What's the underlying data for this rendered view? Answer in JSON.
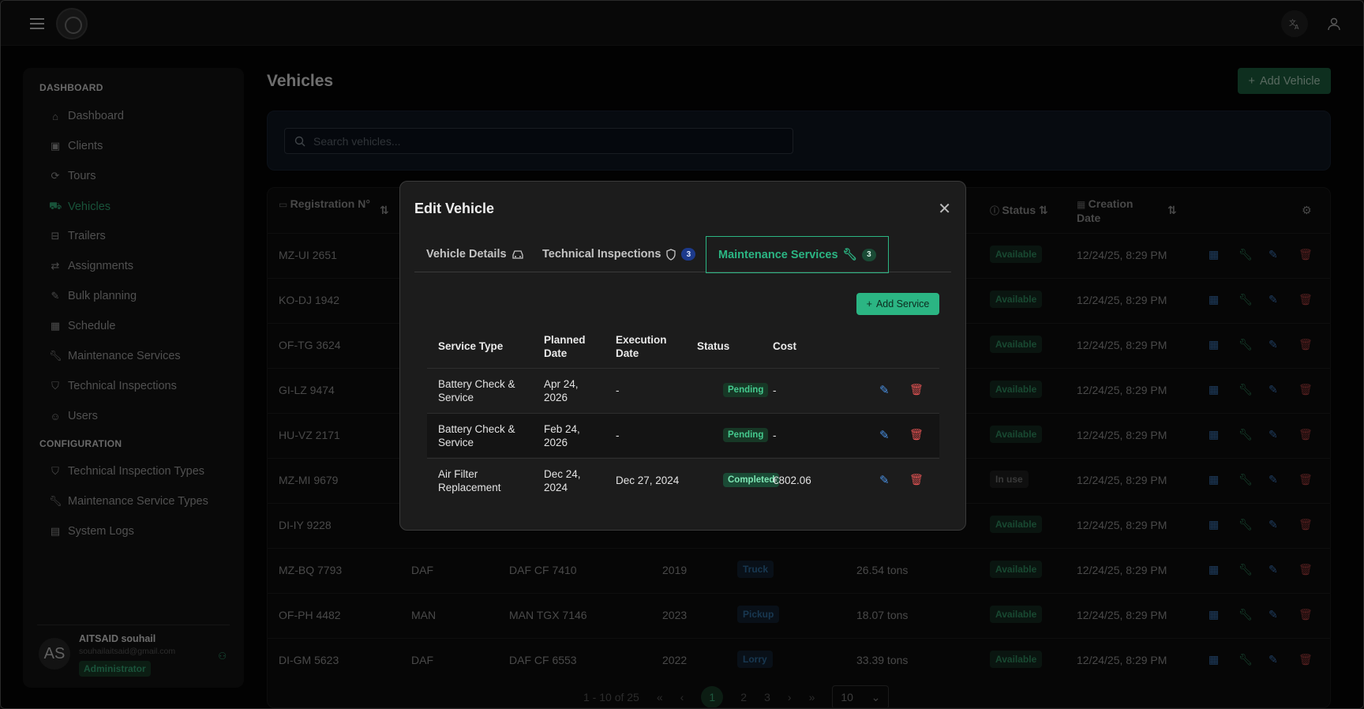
{
  "topbar": {
    "translate_icon": "translate-icon",
    "account_icon": "user-icon"
  },
  "sidebar": {
    "section_dashboard": "DASHBOARD",
    "section_configuration": "CONFIGURATION",
    "items": [
      {
        "label": "Dashboard",
        "icon": "home-icon"
      },
      {
        "label": "Clients",
        "icon": "briefcase-icon"
      },
      {
        "label": "Tours",
        "icon": "refresh-icon"
      },
      {
        "label": "Vehicles",
        "icon": "truck-icon"
      },
      {
        "label": "Trailers",
        "icon": "inbox-icon"
      },
      {
        "label": "Assignments",
        "icon": "swap-icon"
      },
      {
        "label": "Bulk planning",
        "icon": "pencil-icon"
      },
      {
        "label": "Schedule",
        "icon": "calendar-icon"
      },
      {
        "label": "Maintenance Services",
        "icon": "wrench-icon"
      },
      {
        "label": "Technical Inspections",
        "icon": "shield-icon"
      },
      {
        "label": "Users",
        "icon": "users-icon"
      }
    ],
    "config_items": [
      {
        "label": "Technical Inspection Types",
        "icon": "shield-icon"
      },
      {
        "label": "Maintenance Service Types",
        "icon": "wrench-icon"
      },
      {
        "label": "System Logs",
        "icon": "file-icon"
      }
    ],
    "active": "Vehicles",
    "user": {
      "initials": "AS",
      "name": "AITSAID souhail",
      "email": "souhailaitsaid@gmail.com",
      "role": "Administrator"
    }
  },
  "main": {
    "title": "Vehicles",
    "add_button": "Add Vehicle",
    "search_placeholder": "Search vehicles...",
    "columns": {
      "registration": "Registration N°",
      "status": "Status",
      "creation_date": "Creation Date"
    },
    "rows": [
      {
        "reg": "MZ-UI 2651",
        "brand": "",
        "model": "",
        "year": "",
        "type": "",
        "capacity": "",
        "status": "Available",
        "created": "12/24/25, 8:29 PM"
      },
      {
        "reg": "KO-DJ 1942",
        "brand": "",
        "model": "",
        "year": "",
        "type": "",
        "capacity": "",
        "status": "Available",
        "created": "12/24/25, 8:29 PM"
      },
      {
        "reg": "OF-TG 3624",
        "brand": "",
        "model": "",
        "year": "",
        "type": "",
        "capacity": "",
        "status": "Available",
        "created": "12/24/25, 8:29 PM"
      },
      {
        "reg": "GI-LZ 9474",
        "brand": "",
        "model": "",
        "year": "",
        "type": "",
        "capacity": "",
        "status": "Available",
        "created": "12/24/25, 8:29 PM"
      },
      {
        "reg": "HU-VZ 2171",
        "brand": "",
        "model": "",
        "year": "",
        "type": "",
        "capacity": "",
        "status": "Available",
        "created": "12/24/25, 8:29 PM"
      },
      {
        "reg": "MZ-MI 9679",
        "brand": "",
        "model": "",
        "year": "",
        "type": "",
        "capacity": "",
        "status": "In use",
        "created": "12/24/25, 8:29 PM"
      },
      {
        "reg": "DI-IY 9228",
        "brand": "",
        "model": "",
        "year": "",
        "type": "",
        "capacity": "",
        "status": "Available",
        "created": "12/24/25, 8:29 PM"
      },
      {
        "reg": "MZ-BQ 7793",
        "brand": "DAF",
        "model": "DAF CF 7410",
        "year": "2019",
        "type": "Truck",
        "capacity": "26.54 tons",
        "status": "Available",
        "created": "12/24/25, 8:29 PM"
      },
      {
        "reg": "OF-PH 4482",
        "brand": "MAN",
        "model": "MAN TGX 7146",
        "year": "2023",
        "type": "Pickup",
        "capacity": "18.07 tons",
        "status": "Available",
        "created": "12/24/25, 8:29 PM"
      },
      {
        "reg": "DI-GM 5623",
        "brand": "DAF",
        "model": "DAF CF 6553",
        "year": "2022",
        "type": "Lorry",
        "capacity": "33.39 tons",
        "status": "Available",
        "created": "12/24/25, 8:29 PM"
      }
    ],
    "pagination": {
      "summary": "1 - 10 of 25",
      "pages": [
        "1",
        "2",
        "3"
      ],
      "current": "1",
      "page_size": "10"
    }
  },
  "modal": {
    "title": "Edit Vehicle",
    "tabs": [
      {
        "label": "Vehicle Details",
        "icon": "car-icon",
        "count": ""
      },
      {
        "label": "Technical Inspections",
        "icon": "shield-icon",
        "count": "3"
      },
      {
        "label": "Maintenance Services",
        "icon": "wrench-icon",
        "count": "3"
      }
    ],
    "active_tab": "Maintenance Services",
    "add_service": "Add Service",
    "columns": [
      "Service Type",
      "Planned Date",
      "Execution Date",
      "Status",
      "Cost"
    ],
    "services": [
      {
        "type": "Battery Check & Service",
        "planned": "Apr 24, 2026",
        "executed": "-",
        "status": "Pending",
        "cost": "-"
      },
      {
        "type": "Battery Check & Service",
        "planned": "Feb 24, 2026",
        "executed": "-",
        "status": "Pending",
        "cost": "-"
      },
      {
        "type": "Air Filter Replacement",
        "planned": "Dec 24, 2024",
        "executed": "Dec 27, 2024",
        "status": "Completed",
        "cost": "€802.06"
      }
    ]
  }
}
